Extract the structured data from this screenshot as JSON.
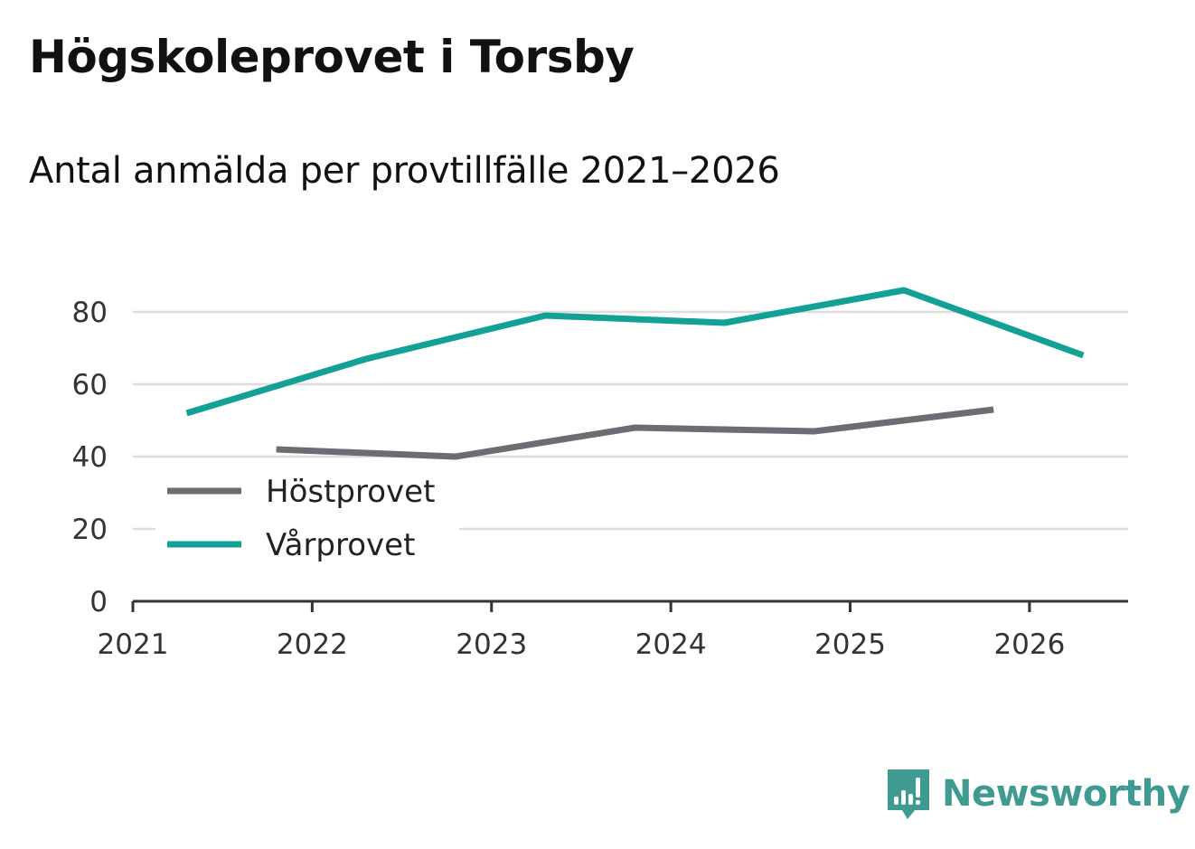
{
  "chart_data": {
    "type": "line",
    "title": "Högskoleprovet i Torsby",
    "subtitle": "Antal anmälda per provtillfälle 2021–2026",
    "xlabel": "",
    "ylabel": "",
    "ylim": [
      0,
      90
    ],
    "yticks": [
      0,
      20,
      40,
      60,
      80
    ],
    "xlim": [
      2021,
      2026.55
    ],
    "xticks": [
      2021,
      2022,
      2023,
      2024,
      2025,
      2026
    ],
    "grid": true,
    "legend_position": "left",
    "series": [
      {
        "name": "Höstprovet",
        "color": "#6d6c73",
        "x": [
          2021.8,
          2022.8,
          2023.8,
          2024.8,
          2025.8
        ],
        "values": [
          42,
          40,
          48,
          47,
          53
        ]
      },
      {
        "name": "Vårprovet",
        "color": "#14a195",
        "x": [
          2021.3,
          2022.3,
          2023.3,
          2024.3,
          2025.3,
          2026.3
        ],
        "values": [
          52,
          67,
          79,
          77,
          86,
          68
        ]
      }
    ]
  },
  "brand": {
    "name": "Newsworthy",
    "color": "#3f9a92",
    "icon": "newsworthy-logo-icon"
  }
}
